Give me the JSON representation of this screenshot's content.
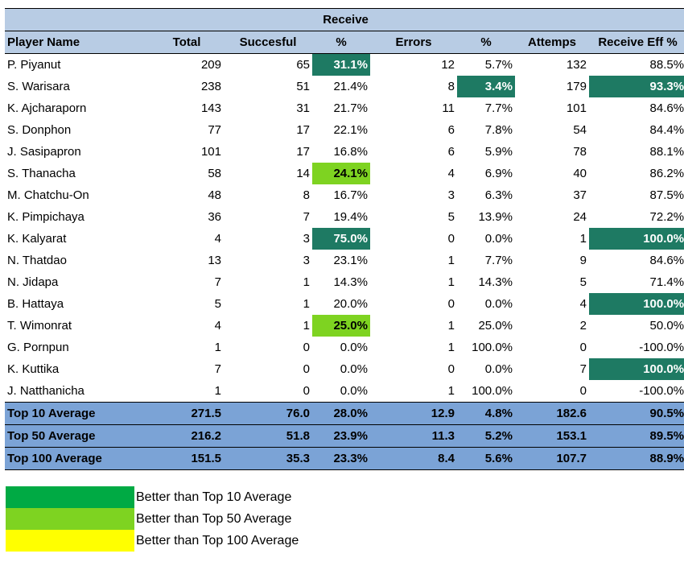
{
  "table": {
    "title": "Receive",
    "headers": [
      "Player Name",
      "Total",
      "Succesful",
      "%",
      "Errors",
      "%",
      "Attemps",
      "Receive Eff %"
    ],
    "rows": [
      {
        "name": "P. Piyanut",
        "total": "209",
        "successful": "65",
        "succ_pct": "31.1%",
        "errors": "12",
        "err_pct": "5.7%",
        "attempts": "132",
        "eff": "88.5%",
        "hl": {
          "succ_pct": "top10"
        }
      },
      {
        "name": "S. Warisara",
        "total": "238",
        "successful": "51",
        "succ_pct": "21.4%",
        "errors": "8",
        "err_pct": "3.4%",
        "attempts": "179",
        "eff": "93.3%",
        "hl": {
          "err_pct": "top10",
          "eff": "top10"
        }
      },
      {
        "name": "K. Ajcharaporn",
        "total": "143",
        "successful": "31",
        "succ_pct": "21.7%",
        "errors": "11",
        "err_pct": "7.7%",
        "attempts": "101",
        "eff": "84.6%",
        "hl": {}
      },
      {
        "name": "S. Donphon",
        "total": "77",
        "successful": "17",
        "succ_pct": "22.1%",
        "errors": "6",
        "err_pct": "7.8%",
        "attempts": "54",
        "eff": "84.4%",
        "hl": {}
      },
      {
        "name": "J. Sasipapron",
        "total": "101",
        "successful": "17",
        "succ_pct": "16.8%",
        "errors": "6",
        "err_pct": "5.9%",
        "attempts": "78",
        "eff": "88.1%",
        "hl": {}
      },
      {
        "name": "S. Thanacha",
        "total": "58",
        "successful": "14",
        "succ_pct": "24.1%",
        "errors": "4",
        "err_pct": "6.9%",
        "attempts": "40",
        "eff": "86.2%",
        "hl": {
          "succ_pct": "top50"
        }
      },
      {
        "name": "M. Chatchu-On",
        "total": "48",
        "successful": "8",
        "succ_pct": "16.7%",
        "errors": "3",
        "err_pct": "6.3%",
        "attempts": "37",
        "eff": "87.5%",
        "hl": {}
      },
      {
        "name": "K. Pimpichaya",
        "total": "36",
        "successful": "7",
        "succ_pct": "19.4%",
        "errors": "5",
        "err_pct": "13.9%",
        "attempts": "24",
        "eff": "72.2%",
        "hl": {}
      },
      {
        "name": "K. Kalyarat",
        "total": "4",
        "successful": "3",
        "succ_pct": "75.0%",
        "errors": "0",
        "err_pct": "0.0%",
        "attempts": "1",
        "eff": "100.0%",
        "hl": {
          "succ_pct": "top10",
          "eff": "top10"
        }
      },
      {
        "name": "N. Thatdao",
        "total": "13",
        "successful": "3",
        "succ_pct": "23.1%",
        "errors": "1",
        "err_pct": "7.7%",
        "attempts": "9",
        "eff": "84.6%",
        "hl": {}
      },
      {
        "name": "N. Jidapa",
        "total": "7",
        "successful": "1",
        "succ_pct": "14.3%",
        "errors": "1",
        "err_pct": "14.3%",
        "attempts": "5",
        "eff": "71.4%",
        "hl": {}
      },
      {
        "name": "B. Hattaya",
        "total": "5",
        "successful": "1",
        "succ_pct": "20.0%",
        "errors": "0",
        "err_pct": "0.0%",
        "attempts": "4",
        "eff": "100.0%",
        "hl": {
          "eff": "top10"
        }
      },
      {
        "name": "T. Wimonrat",
        "total": "4",
        "successful": "1",
        "succ_pct": "25.0%",
        "errors": "1",
        "err_pct": "25.0%",
        "attempts": "2",
        "eff": "50.0%",
        "hl": {
          "succ_pct": "top50"
        }
      },
      {
        "name": "G. Pornpun",
        "total": "1",
        "successful": "0",
        "succ_pct": "0.0%",
        "errors": "1",
        "err_pct": "100.0%",
        "attempts": "0",
        "eff": "-100.0%",
        "hl": {}
      },
      {
        "name": "K. Kuttika",
        "total": "7",
        "successful": "0",
        "succ_pct": "0.0%",
        "errors": "0",
        "err_pct": "0.0%",
        "attempts": "7",
        "eff": "100.0%",
        "hl": {
          "eff": "top10"
        }
      },
      {
        "name": "J. Natthanicha",
        "total": "1",
        "successful": "0",
        "succ_pct": "0.0%",
        "errors": "1",
        "err_pct": "100.0%",
        "attempts": "0",
        "eff": "-100.0%",
        "hl": {}
      }
    ],
    "averages": [
      {
        "name": "Top 10 Average",
        "total": "271.5",
        "successful": "76.0",
        "succ_pct": "28.0%",
        "errors": "12.9",
        "err_pct": "4.8%",
        "attempts": "182.6",
        "eff": "90.5%"
      },
      {
        "name": "Top 50 Average",
        "total": "216.2",
        "successful": "51.8",
        "succ_pct": "23.9%",
        "errors": "11.3",
        "err_pct": "5.2%",
        "attempts": "153.1",
        "eff": "89.5%"
      },
      {
        "name": "Top 100 Average",
        "total": "151.5",
        "successful": "35.3",
        "succ_pct": "23.3%",
        "errors": "8.4",
        "err_pct": "5.6%",
        "attempts": "107.7",
        "eff": "88.9%"
      }
    ]
  },
  "legend": {
    "items": [
      {
        "label": "Better than Top 10 Average",
        "color": "#00aa44"
      },
      {
        "label": "Better than Top 50 Average",
        "color": "#7ed321"
      },
      {
        "label": "Better than Top 100 Average",
        "color": "#ffff00"
      }
    ]
  }
}
